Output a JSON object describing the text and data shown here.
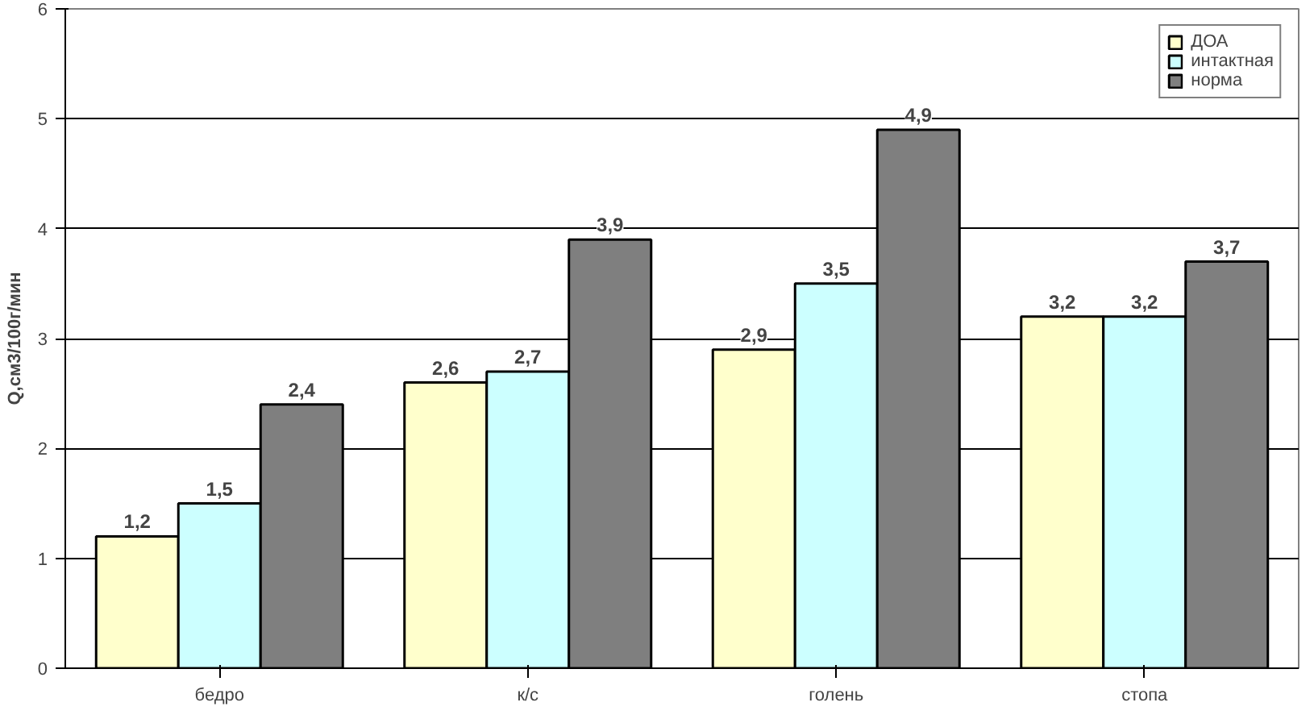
{
  "chart_data": {
    "type": "bar",
    "categories": [
      "бедро",
      "к/с",
      "голень",
      "стопа"
    ],
    "ylabel": "Q,см3/100г/мин",
    "ylim": [
      0,
      6
    ],
    "yticks": [
      0,
      1,
      2,
      3,
      4,
      5,
      6
    ],
    "grid": "y",
    "legend": "top right",
    "series": [
      {
        "name": "ДОА",
        "color": "#ffffcc",
        "values": [
          1.2,
          2.6,
          2.9,
          3.2
        ],
        "value_labels": [
          "1,2",
          "2,6",
          "2,9",
          "3,2"
        ]
      },
      {
        "name": "интактная",
        "color": "#ccffff",
        "values": [
          1.5,
          2.7,
          3.5,
          3.2
        ],
        "value_labels": [
          "1,5",
          "2,7",
          "3,5",
          "3,2"
        ]
      },
      {
        "name": "норма",
        "color": "#7f7f7f",
        "values": [
          2.4,
          3.9,
          4.9,
          3.7
        ],
        "value_labels": [
          "2,4",
          "3,9",
          "4,9",
          "3,7"
        ]
      }
    ]
  }
}
